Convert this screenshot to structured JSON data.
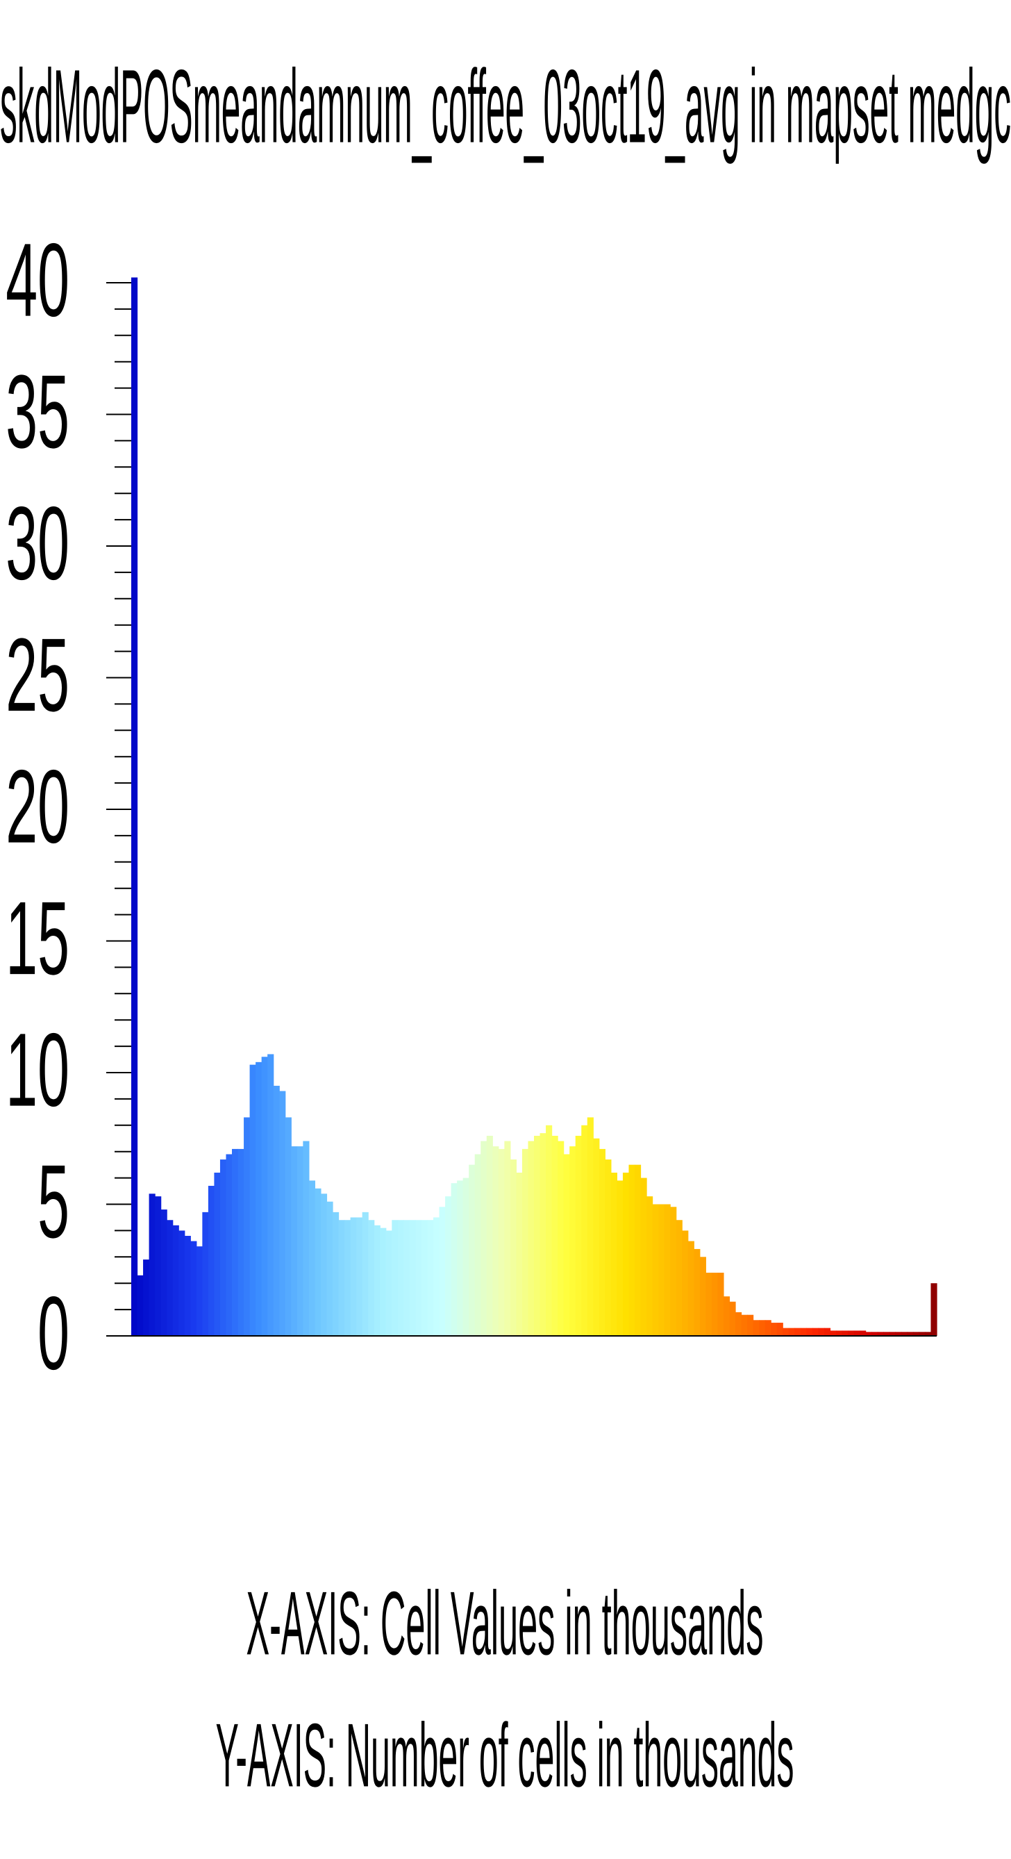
{
  "chart_data": {
    "type": "bar",
    "title": "skdModPOSmeandamnum_coffee_03oct19_avg in mapset medgc",
    "x_label": "X-AXIS: Cell Values in thousands",
    "y_label": "Y-AXIS: Number of cells in thousands",
    "values": [
      40.2,
      2.3,
      2.9,
      5.4,
      5.3,
      4.8,
      4.4,
      4.2,
      4.0,
      3.8,
      3.6,
      3.4,
      4.7,
      5.7,
      6.2,
      6.7,
      6.9,
      7.1,
      7.1,
      8.3,
      10.3,
      10.4,
      10.6,
      10.7,
      9.5,
      9.3,
      8.3,
      7.2,
      7.2,
      7.4,
      5.9,
      5.6,
      5.4,
      5.1,
      4.7,
      4.4,
      4.4,
      4.5,
      4.5,
      4.7,
      4.4,
      4.2,
      4.1,
      4.0,
      4.4,
      4.4,
      4.4,
      4.4,
      4.4,
      4.4,
      4.4,
      4.5,
      4.9,
      5.3,
      5.8,
      5.9,
      6.0,
      6.5,
      6.9,
      7.4,
      7.6,
      7.2,
      7.1,
      7.4,
      6.7,
      6.2,
      7.1,
      7.4,
      7.6,
      7.7,
      8.0,
      7.6,
      7.4,
      6.9,
      7.2,
      7.6,
      8.0,
      8.3,
      7.5,
      7.1,
      6.7,
      6.2,
      5.9,
      6.2,
      6.5,
      6.5,
      6.0,
      5.3,
      5.0,
      5.0,
      5.0,
      4.9,
      4.4,
      4.0,
      3.6,
      3.3,
      3.0,
      2.4,
      2.4,
      2.4,
      1.5,
      1.3,
      0.9,
      0.8,
      0.8,
      0.6,
      0.6,
      0.6,
      0.5,
      0.5,
      0.3,
      0.3,
      0.3,
      0.3,
      0.3,
      0.3,
      0.3,
      0.3,
      0.2,
      0.2,
      0.2,
      0.2,
      0.2,
      0.2,
      0.15,
      0.15,
      0.15,
      0.15,
      0.15,
      0.15,
      0.15,
      0.15,
      0.15,
      0.15,
      0.15,
      2.0
    ],
    "color_ramp": [
      "#0008c8",
      "#1a3cf0",
      "#3a8cff",
      "#70c8ff",
      "#a8f0ff",
      "#c8ffff",
      "#f0ffb0",
      "#ffff40",
      "#ffe000",
      "#ffb000",
      "#ff7000",
      "#ff2800",
      "#d00000",
      "#900000"
    ],
    "ylim": [
      0,
      40
    ],
    "yticks": [
      0,
      5,
      10,
      15,
      20,
      25,
      30,
      35,
      40
    ],
    "minor_ytick_step": 1
  }
}
